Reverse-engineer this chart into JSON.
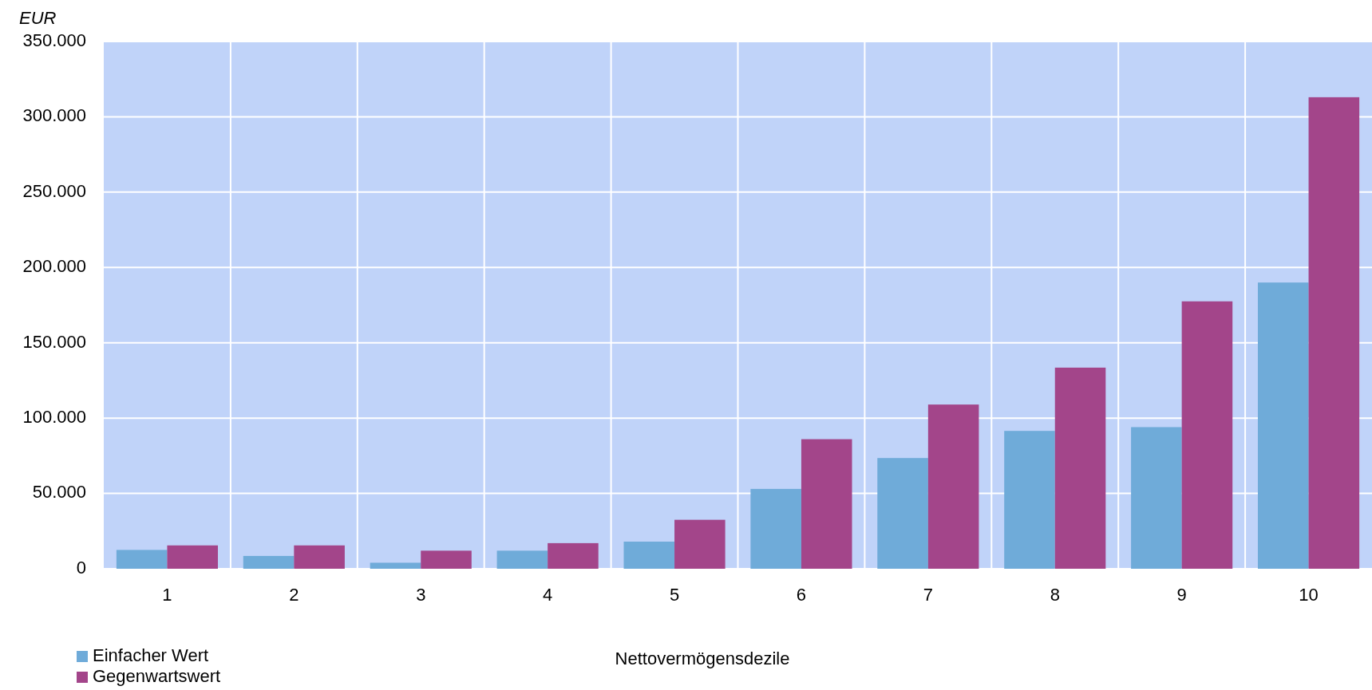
{
  "chart_data": {
    "type": "bar",
    "ylabel": "EUR",
    "xlabel": "Nettovermögensdezile",
    "categories": [
      "1",
      "2",
      "3",
      "4",
      "5",
      "6",
      "7",
      "8",
      "9",
      "10"
    ],
    "series": [
      {
        "name": "Einfacher Wert",
        "color": "#6fabd9",
        "values": [
          12500,
          8500,
          4000,
          12000,
          18000,
          53000,
          73500,
          91500,
          94000,
          190000
        ]
      },
      {
        "name": "Gegenwartswert",
        "color": "#a3458a",
        "values": [
          15500,
          15500,
          12000,
          17000,
          32500,
          86000,
          109000,
          133500,
          177500,
          313000
        ]
      }
    ],
    "ylim": [
      0,
      350000
    ],
    "yticks": [
      {
        "value": 0,
        "label": "0"
      },
      {
        "value": 50000,
        "label": "50.000"
      },
      {
        "value": 100000,
        "label": "100.000"
      },
      {
        "value": 150000,
        "label": "150.000"
      },
      {
        "value": 200000,
        "label": "200.000"
      },
      {
        "value": 250000,
        "label": "250.000"
      },
      {
        "value": 300000,
        "label": "300.000"
      },
      {
        "value": 350000,
        "label": "350.000"
      }
    ],
    "grid": true,
    "legend": "bottom left"
  }
}
